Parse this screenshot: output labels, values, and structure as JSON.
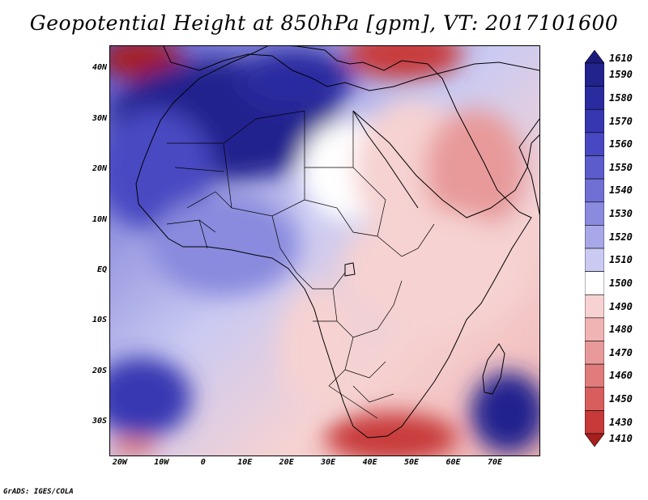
{
  "title": "Geopotential Height at 850hPa [gpm], VT: 2017101600",
  "footer": "GrADS: IGES/COLA",
  "axes": {
    "lat_labels": [
      "40N",
      "30N",
      "20N",
      "10N",
      "EQ",
      "10S",
      "20S",
      "30S"
    ],
    "lat_values": [
      40,
      30,
      20,
      10,
      0,
      -10,
      -20,
      -30
    ],
    "lon_labels": [
      "20W",
      "10W",
      "0",
      "10E",
      "20E",
      "30E",
      "40E",
      "50E",
      "60E",
      "70E"
    ],
    "lon_values": [
      -20,
      -10,
      0,
      10,
      20,
      30,
      40,
      50,
      60,
      70
    ],
    "lat_range": [
      -36.5,
      44.5
    ],
    "lon_range": [
      -22.5,
      80.5
    ]
  },
  "colorbar": {
    "levels": [
      "1610",
      "1590",
      "1580",
      "1570",
      "1560",
      "1550",
      "1540",
      "1530",
      "1520",
      "1510",
      "1500",
      "1490",
      "1480",
      "1470",
      "1460",
      "1450",
      "1430",
      "1410"
    ],
    "colors": [
      "#1a1a7e",
      "#23238e",
      "#2b2ba0",
      "#3737b2",
      "#4848c2",
      "#5c5ccc",
      "#7070d4",
      "#8a8ade",
      "#a8a8e8",
      "#cacaf2",
      "#ffffff",
      "#f6d2d2",
      "#f0b4b4",
      "#e89a9a",
      "#e07c7c",
      "#d85e5e",
      "#c83a3a",
      "#a81e1e"
    ]
  },
  "map": {
    "ocean_fill": "#f2f2f2",
    "coastline_color": "#000000",
    "field_blobs": [
      {
        "lon": -15,
        "lat": 42,
        "rx": 10,
        "ry": 4,
        "color": "#a81e1e"
      },
      {
        "lon": 48,
        "lat": 43,
        "rx": 14,
        "ry": 5,
        "color": "#c83a3a"
      },
      {
        "lon": 5,
        "lat": 30,
        "rx": 28,
        "ry": 12,
        "color": "#23238e"
      },
      {
        "lon": 22,
        "lat": 38,
        "rx": 14,
        "ry": 6,
        "color": "#2b2ba0"
      },
      {
        "lon": -12,
        "lat": 20,
        "rx": 14,
        "ry": 12,
        "color": "#4848c2"
      },
      {
        "lon": 5,
        "lat": 5,
        "rx": 18,
        "ry": 10,
        "color": "#8a8ade"
      },
      {
        "lon": 35,
        "lat": 20,
        "rx": 12,
        "ry": 10,
        "color": "#ffffff"
      },
      {
        "lon": 50,
        "lat": 20,
        "rx": 14,
        "ry": 14,
        "color": "#f6d2d2"
      },
      {
        "lon": 65,
        "lat": 20,
        "rx": 12,
        "ry": 12,
        "color": "#e89a9a"
      },
      {
        "lon": 55,
        "lat": 0,
        "rx": 22,
        "ry": 12,
        "color": "#f6d2d2"
      },
      {
        "lon": 28,
        "lat": -15,
        "rx": 10,
        "ry": 12,
        "color": "#f6d2d2"
      },
      {
        "lon": -15,
        "lat": -25,
        "rx": 12,
        "ry": 8,
        "color": "#3737b2"
      },
      {
        "lon": 73,
        "lat": -28,
        "rx": 9,
        "ry": 8,
        "color": "#23238e"
      },
      {
        "lon": 45,
        "lat": -33,
        "rx": 16,
        "ry": 5,
        "color": "#c83a3a"
      },
      {
        "lon": -17,
        "lat": -35,
        "rx": 6,
        "ry": 2,
        "color": "#e07c7c"
      }
    ]
  }
}
